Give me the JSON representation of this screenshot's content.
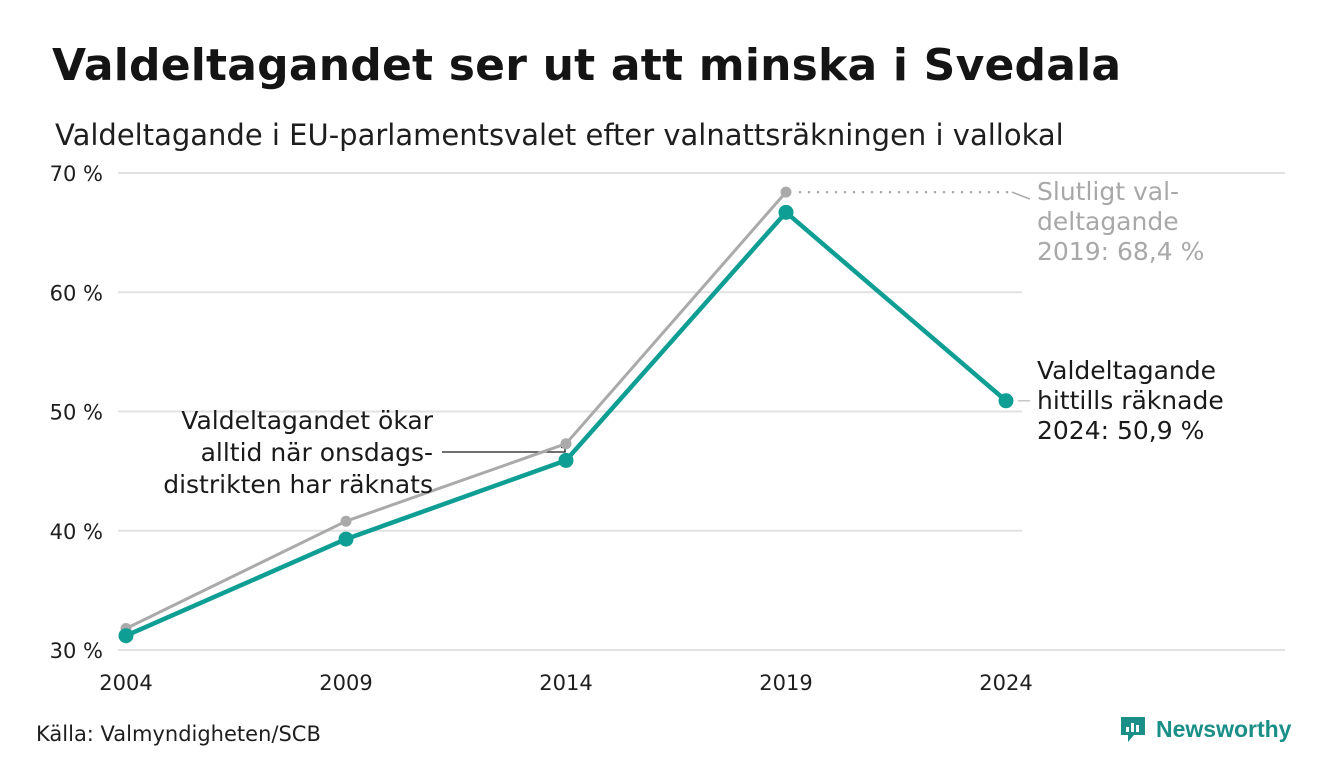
{
  "title": "Valdeltagandet ser ut att minska i Svedala",
  "subtitle": "Valdeltagande i EU-parlamentsvalet efter valnattsräkningen i vallokal",
  "source": "Källa: Valmyndigheten/SCB",
  "brand": {
    "name": "Newsworthy",
    "icon": "newsworthy-logo-icon",
    "color": "#1a8f87"
  },
  "colors": {
    "preliminary": "#0f9e93",
    "final": "#aaaaaa",
    "grid": "#e2e2e2",
    "annotation_final": "#a8a8a8"
  },
  "chart_data": {
    "type": "line",
    "x": [
      "2004",
      "2009",
      "2014",
      "2019",
      "2024"
    ],
    "y_ticks": [
      "30 %",
      "40 %",
      "50 %",
      "60 %",
      "70 %"
    ],
    "ylim": [
      30,
      70
    ],
    "grid": true,
    "series": [
      {
        "id": "final",
        "values": [
          31.8,
          40.8,
          47.3,
          68.4,
          null
        ]
      },
      {
        "id": "preliminary",
        "values": [
          31.2,
          39.3,
          45.9,
          66.7,
          50.9
        ]
      }
    ],
    "annotations": {
      "final_2019": [
        "Slutligt val-",
        "deltagande",
        "2019: 68,4 %"
      ],
      "current_2024": [
        "Valdeltagande",
        "hittills räknade",
        "2024: 50,9 %"
      ],
      "note": [
        "Valdeltagandet ökar",
        "alltid när onsdags-",
        "distrikten har räknats"
      ]
    }
  }
}
